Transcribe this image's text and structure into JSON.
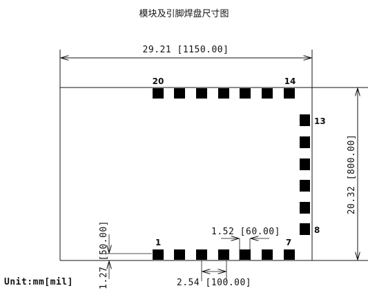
{
  "title": "模块及引脚焊盘尺寸图",
  "dimensions": {
    "width": "29.21 [1150.00]",
    "height": "20.32 [800.00]",
    "pad_spacing": "1.52 [60.00]",
    "pad_pitch": "2.54 [100.00]",
    "edge_offset": "1.27 [50.00]"
  },
  "pin_labels": {
    "p1": "1",
    "p7": "7",
    "p8": "8",
    "p13": "13",
    "p14": "14",
    "p20": "20"
  },
  "unit_label": "Unit:mm[mil]",
  "colors": {
    "pad": "#000000",
    "line": "#111111"
  }
}
